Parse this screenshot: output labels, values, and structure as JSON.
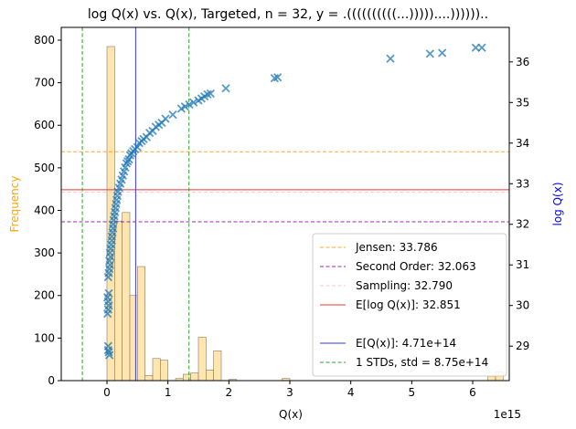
{
  "chart_data": {
    "type": "histogram+scatter",
    "title": "log Q(x) vs. Q(x), Targeted, n = 32, y = .((((((((((...)))))....))))))..",
    "xlabel": "Q(x)",
    "x_offset_label": "1e15",
    "ylabel_left": "Frequency",
    "ylabel_right": "log Q(x)",
    "xlim": [
      -0.75,
      6.6
    ],
    "ylim_left": [
      0,
      830
    ],
    "ylim_right": [
      28.15,
      36.85
    ],
    "x_ticks": [
      0,
      1,
      2,
      3,
      4,
      5,
      6
    ],
    "x_tick_labels": [
      "0",
      "1",
      "2",
      "3",
      "4",
      "5",
      "6"
    ],
    "y_left_ticks": [
      0,
      100,
      200,
      300,
      400,
      500,
      600,
      700,
      800
    ],
    "y_left_tick_labels": [
      "0",
      "100",
      "200",
      "300",
      "400",
      "500",
      "600",
      "700",
      "800"
    ],
    "y_right_ticks": [
      29,
      30,
      31,
      32,
      33,
      34,
      35,
      36
    ],
    "y_right_tick_labels": [
      "29",
      "30",
      "31",
      "32",
      "33",
      "34",
      "35",
      "36"
    ],
    "histogram": {
      "bin_width": 0.125,
      "color": "#ffdc96",
      "bins": [
        {
          "x": 0.0,
          "count": 785
        },
        {
          "x": 0.125,
          "count": 375
        },
        {
          "x": 0.25,
          "count": 395
        },
        {
          "x": 0.375,
          "count": 200
        },
        {
          "x": 0.5,
          "count": 268
        },
        {
          "x": 0.625,
          "count": 12
        },
        {
          "x": 0.75,
          "count": 52
        },
        {
          "x": 0.875,
          "count": 48
        },
        {
          "x": 1.125,
          "count": 5
        },
        {
          "x": 1.25,
          "count": 15
        },
        {
          "x": 1.375,
          "count": 18
        },
        {
          "x": 1.5,
          "count": 102
        },
        {
          "x": 1.625,
          "count": 25
        },
        {
          "x": 1.75,
          "count": 70
        },
        {
          "x": 2.0,
          "count": 3
        },
        {
          "x": 2.875,
          "count": 5
        },
        {
          "x": 6.25,
          "count": 10
        },
        {
          "x": 6.375,
          "count": 20
        }
      ]
    },
    "scatter": {
      "marker": "x",
      "color": "#1f77b4",
      "points": [
        [
          0.02,
          28.9
        ],
        [
          0.03,
          28.85
        ],
        [
          0.04,
          28.78
        ],
        [
          0.02,
          29.0
        ],
        [
          0.01,
          29.8
        ],
        [
          0.02,
          29.9
        ],
        [
          0.03,
          30.0
        ],
        [
          0.02,
          30.1
        ],
        [
          0.01,
          30.2
        ],
        [
          0.03,
          30.3
        ],
        [
          0.02,
          30.7
        ],
        [
          0.03,
          30.8
        ],
        [
          0.04,
          30.9
        ],
        [
          0.05,
          31.0
        ],
        [
          0.04,
          31.1
        ],
        [
          0.06,
          31.2
        ],
        [
          0.05,
          31.3
        ],
        [
          0.06,
          31.4
        ],
        [
          0.07,
          31.5
        ],
        [
          0.08,
          31.6
        ],
        [
          0.08,
          31.7
        ],
        [
          0.09,
          31.8
        ],
        [
          0.1,
          31.9
        ],
        [
          0.1,
          32.0
        ],
        [
          0.11,
          32.1
        ],
        [
          0.12,
          32.2
        ],
        [
          0.13,
          32.3
        ],
        [
          0.14,
          32.4
        ],
        [
          0.15,
          32.5
        ],
        [
          0.16,
          32.6
        ],
        [
          0.17,
          32.7
        ],
        [
          0.18,
          32.8
        ],
        [
          0.2,
          32.9
        ],
        [
          0.22,
          33.0
        ],
        [
          0.24,
          33.1
        ],
        [
          0.26,
          33.2
        ],
        [
          0.28,
          33.3
        ],
        [
          0.3,
          33.4
        ],
        [
          0.32,
          33.5
        ],
        [
          0.34,
          33.55
        ],
        [
          0.36,
          33.6
        ],
        [
          0.38,
          33.7
        ],
        [
          0.4,
          33.75
        ],
        [
          0.43,
          33.8
        ],
        [
          0.46,
          33.85
        ],
        [
          0.5,
          33.9
        ],
        [
          0.53,
          34.0
        ],
        [
          0.57,
          34.05
        ],
        [
          0.6,
          34.1
        ],
        [
          0.65,
          34.15
        ],
        [
          0.7,
          34.25
        ],
        [
          0.75,
          34.3
        ],
        [
          0.8,
          34.4
        ],
        [
          0.85,
          34.45
        ],
        [
          0.9,
          34.5
        ],
        [
          0.96,
          34.6
        ],
        [
          1.08,
          34.7
        ],
        [
          1.22,
          34.85
        ],
        [
          1.28,
          34.9
        ],
        [
          1.35,
          34.95
        ],
        [
          1.42,
          35.0
        ],
        [
          1.5,
          35.05
        ],
        [
          1.55,
          35.1
        ],
        [
          1.6,
          35.15
        ],
        [
          1.65,
          35.2
        ],
        [
          1.7,
          35.22
        ],
        [
          1.95,
          35.35
        ],
        [
          2.75,
          35.6
        ],
        [
          2.8,
          35.62
        ],
        [
          4.65,
          36.08
        ],
        [
          5.3,
          36.2
        ],
        [
          5.5,
          36.22
        ],
        [
          6.05,
          36.35
        ],
        [
          6.15,
          36.35
        ]
      ]
    },
    "vlines": [
      {
        "name": "E[Q(x)]: 4.71e+14",
        "x": 0.471,
        "color": "#3a3adf",
        "style": "solid"
      },
      {
        "name": "1 STDs, std = 8.75e+14",
        "x": -0.404,
        "color": "#2ca02c",
        "style": "dashed"
      },
      {
        "name": "1 STDs, std = 8.75e+14",
        "x": 1.346,
        "color": "#2ca02c",
        "style": "dashed"
      }
    ],
    "hlines": [
      {
        "name": "Jensen: 33.786",
        "y": 33.786,
        "color": "#ffa726",
        "style": "dashed"
      },
      {
        "name": "Second Order: 32.063",
        "y": 32.063,
        "color": "#9c27b0",
        "style": "dashed"
      },
      {
        "name": "Sampling: 32.790",
        "y": 32.79,
        "color": "#f4c7cc",
        "style": "dashed"
      },
      {
        "name": "E[log Q(x)]: 32.851",
        "y": 32.851,
        "color": "#e53935",
        "style": "solid"
      }
    ],
    "legend": {
      "placement": "lower-right",
      "entries": [
        {
          "label": "Jensen: 33.786",
          "color": "#ffa726",
          "style": "dashed"
        },
        {
          "label": "Second Order: 32.063",
          "color": "#9c27b0",
          "style": "dashed"
        },
        {
          "label": "Sampling: 32.790",
          "color": "#f4c7cc",
          "style": "dashed"
        },
        {
          "label": "E[log Q(x)]: 32.851",
          "color": "#e53935",
          "style": "solid"
        },
        {
          "label": "",
          "color": "",
          "style": "none"
        },
        {
          "label": "E[Q(x)]: 4.71e+14",
          "color": "#3a3adf",
          "style": "solid"
        },
        {
          "label": "1 STDs, std = 8.75e+14",
          "color": "#2ca02c",
          "style": "dashed"
        }
      ]
    },
    "colors": {
      "left_label": "#ffa500",
      "right_label": "#0000ff"
    }
  }
}
